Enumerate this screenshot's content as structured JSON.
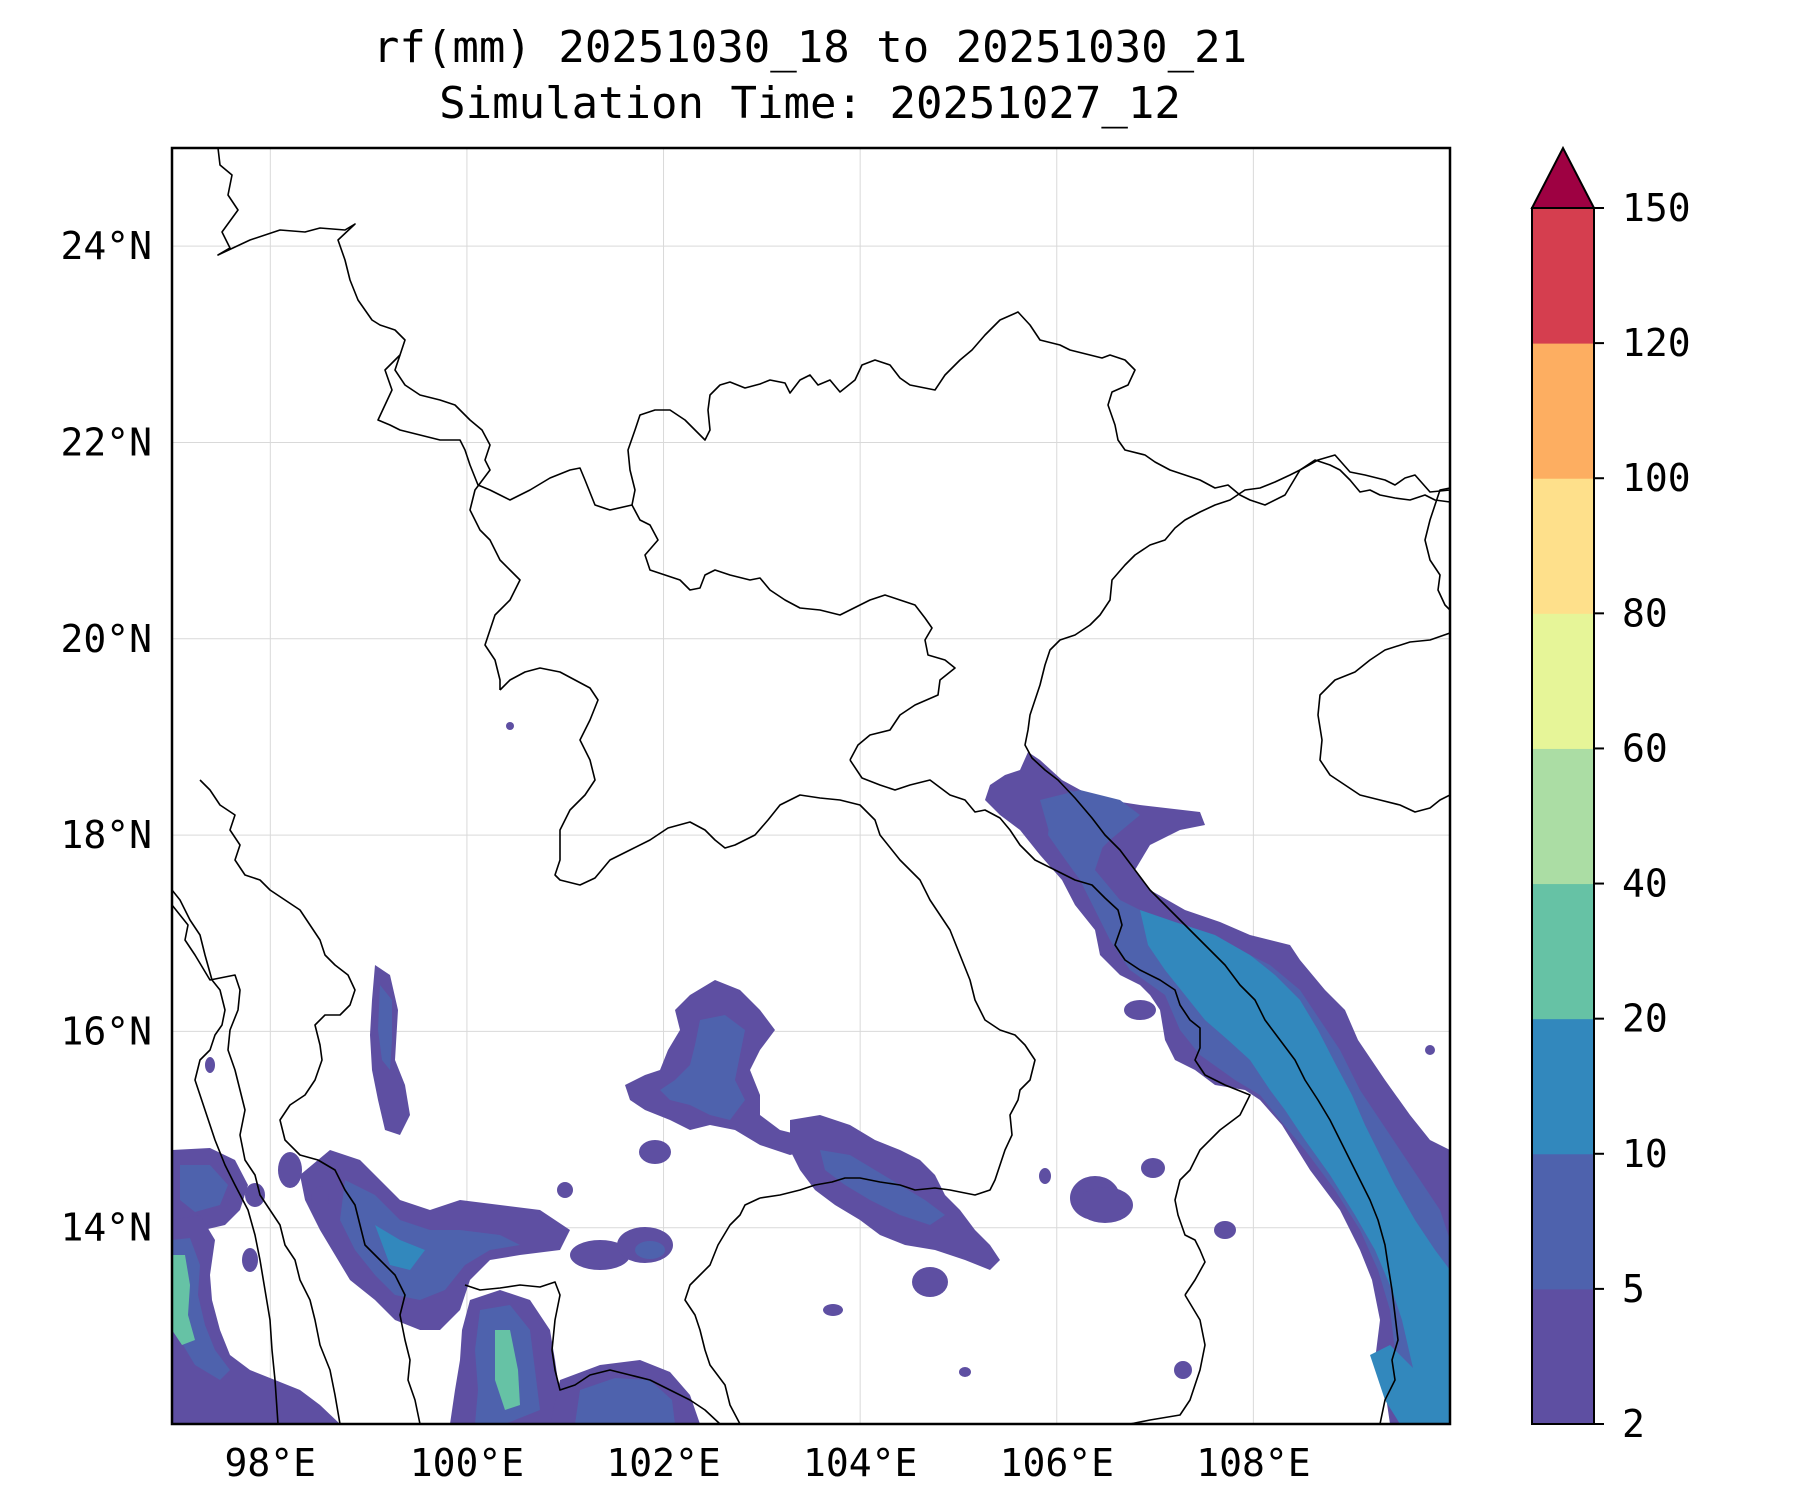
{
  "title": {
    "line1": "rf(mm) 20251030_18 to 20251030_21",
    "line2": "Simulation Time: 20251027_12"
  },
  "variable": "rf(mm)",
  "map": {
    "lon_range": [
      97,
      110
    ],
    "lat_range": [
      12,
      25
    ],
    "x_ticks": [
      {
        "value": 98,
        "label": "98°E"
      },
      {
        "value": 100,
        "label": "100°E"
      },
      {
        "value": 102,
        "label": "102°E"
      },
      {
        "value": 104,
        "label": "104°E"
      },
      {
        "value": 106,
        "label": "106°E"
      },
      {
        "value": 108,
        "label": "108°E"
      }
    ],
    "y_ticks": [
      {
        "value": 24,
        "label": "24°N"
      },
      {
        "value": 22,
        "label": "22°N"
      },
      {
        "value": 20,
        "label": "20°N"
      },
      {
        "value": 18,
        "label": "18°N"
      },
      {
        "value": 16,
        "label": "16°N"
      },
      {
        "value": 14,
        "label": "14°N"
      }
    ],
    "grid": true
  },
  "colorbar": {
    "levels": [
      {
        "value": 2,
        "label": "2"
      },
      {
        "value": 5,
        "label": "5"
      },
      {
        "value": 10,
        "label": "10"
      },
      {
        "value": 20,
        "label": "20"
      },
      {
        "value": 40,
        "label": "40"
      },
      {
        "value": 60,
        "label": "60"
      },
      {
        "value": 80,
        "label": "80"
      },
      {
        "value": 100,
        "label": "100"
      },
      {
        "value": 120,
        "label": "120"
      },
      {
        "value": 150,
        "label": "150"
      }
    ],
    "colors": [
      "#5e4fa2",
      "#4e62ad",
      "#3288bd",
      "#66c2a5",
      "#abdda4",
      "#e6f598",
      "#fee08b",
      "#fdae61",
      "#d53e4f"
    ],
    "extend_color": "#9e0142",
    "extend": "max"
  }
}
